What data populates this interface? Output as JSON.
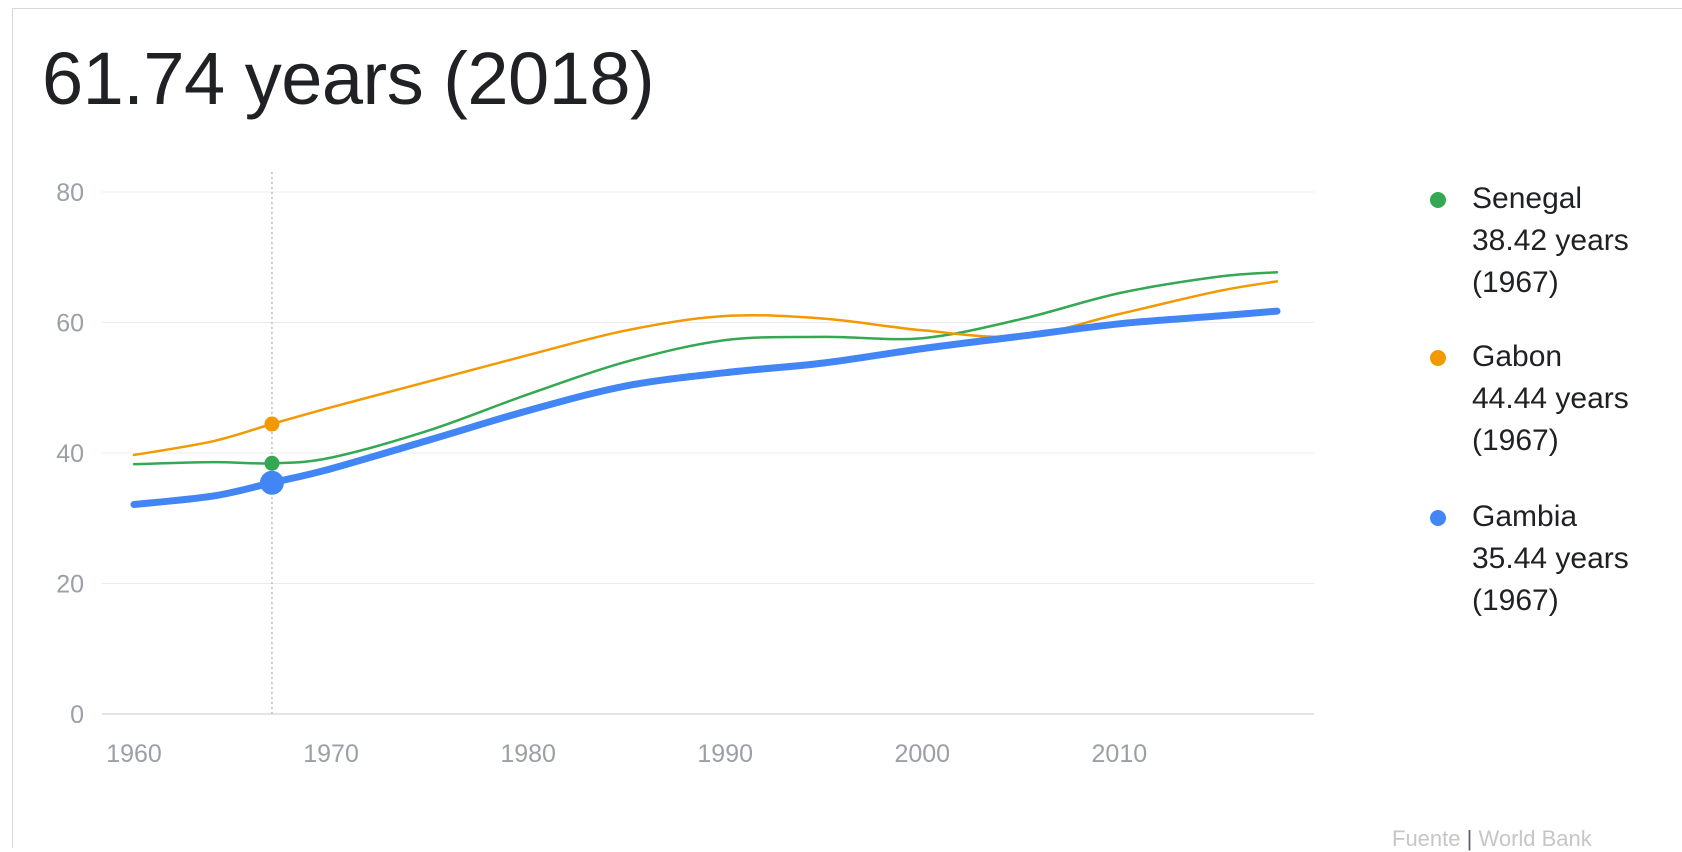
{
  "headline": "61.74 years (2018)",
  "source": {
    "label": "Fuente",
    "separator": "|",
    "provider": "World Bank"
  },
  "chart_data": {
    "type": "line",
    "title": "61.74 years (2018)",
    "xlabel": "",
    "ylabel": "",
    "xlim": [
      1960,
      2018
    ],
    "ylim": [
      0,
      80
    ],
    "x_ticks": [
      1960,
      1970,
      1980,
      1990,
      2000,
      2010
    ],
    "y_ticks": [
      0,
      20,
      40,
      60,
      80
    ],
    "grid": true,
    "legend_position": "right",
    "hover_year": 1967,
    "series": [
      {
        "name": "Senegal",
        "color": "#34a853",
        "highlight_value": 38.42,
        "legend_value": "38.42 years",
        "legend_year": "(1967)",
        "points": [
          [
            1960,
            38.3
          ],
          [
            1964,
            38.6
          ],
          [
            1967,
            38.42
          ],
          [
            1970,
            39.3
          ],
          [
            1975,
            43.5
          ],
          [
            1980,
            49.0
          ],
          [
            1985,
            54.0
          ],
          [
            1990,
            57.3
          ],
          [
            1995,
            57.8
          ],
          [
            2000,
            57.6
          ],
          [
            2005,
            60.5
          ],
          [
            2010,
            64.5
          ],
          [
            2015,
            67.0
          ],
          [
            2018,
            67.7
          ]
        ]
      },
      {
        "name": "Gabon",
        "color": "#f29900",
        "highlight_value": 44.44,
        "legend_value": "44.44 years",
        "legend_year": "(1967)",
        "points": [
          [
            1960,
            39.7
          ],
          [
            1964,
            41.8
          ],
          [
            1967,
            44.44
          ],
          [
            1970,
            47.0
          ],
          [
            1975,
            51.0
          ],
          [
            1980,
            55.0
          ],
          [
            1985,
            58.8
          ],
          [
            1990,
            61.0
          ],
          [
            1995,
            60.6
          ],
          [
            2000,
            58.8
          ],
          [
            2005,
            57.9
          ],
          [
            2010,
            61.3
          ],
          [
            2015,
            64.8
          ],
          [
            2018,
            66.3
          ]
        ]
      },
      {
        "name": "Gambia",
        "color": "#4285f4",
        "highlight_value": 35.44,
        "legend_value": "35.44 years",
        "legend_year": "(1967)",
        "points": [
          [
            1960,
            32.1
          ],
          [
            1964,
            33.4
          ],
          [
            1967,
            35.44
          ],
          [
            1970,
            37.6
          ],
          [
            1975,
            42.0
          ],
          [
            1980,
            46.5
          ],
          [
            1985,
            50.3
          ],
          [
            1990,
            52.3
          ],
          [
            1995,
            53.8
          ],
          [
            2000,
            56.0
          ],
          [
            2005,
            57.9
          ],
          [
            2010,
            59.8
          ],
          [
            2015,
            61.0
          ],
          [
            2018,
            61.74
          ]
        ]
      }
    ]
  }
}
